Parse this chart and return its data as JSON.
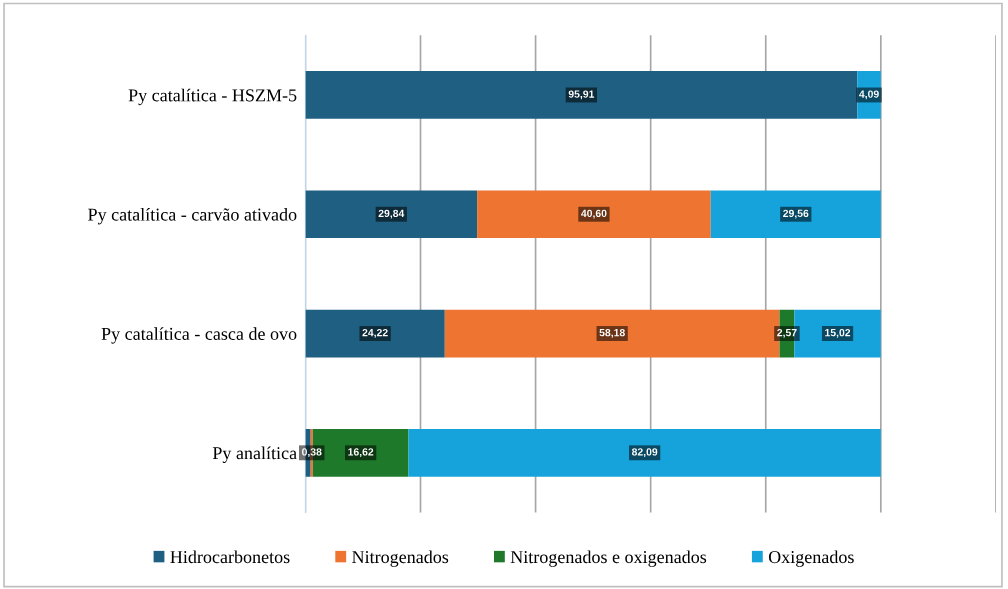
{
  "chart_data": {
    "type": "bar",
    "orientation": "horizontal",
    "stacked": true,
    "categories": [
      "Py catalítica - HSZM-5",
      "Py catalítica - carvão ativado",
      "Py catalítica - casca de ovo",
      "Py analítica"
    ],
    "series": [
      {
        "name": "Hidrocarbonetos",
        "color": "#1f5f82",
        "values": [
          95.91,
          29.84,
          24.22,
          0.91
        ],
        "value_labels": [
          "95,91",
          "29,84",
          "24,22",
          null
        ]
      },
      {
        "name": "Nitrogenados",
        "color": "#ee7431",
        "values": [
          0,
          40.6,
          58.18,
          0.38
        ],
        "value_labels": [
          null,
          "40,60",
          "58,18",
          "0,38"
        ]
      },
      {
        "name": "Nitrogenados e oxigenados",
        "color": "#1e7a2a",
        "values": [
          0,
          0,
          2.57,
          16.62
        ],
        "value_labels": [
          null,
          null,
          "2,57",
          "16,62"
        ]
      },
      {
        "name": "Oxigenados",
        "color": "#16a3dc",
        "values": [
          4.09,
          29.56,
          15.02,
          82.09
        ],
        "value_labels": [
          "4,09",
          "29,56",
          "15,02",
          "82,09"
        ]
      }
    ],
    "xlim": [
      0,
      120
    ],
    "xticks": [
      {
        "value": 0,
        "label": null
      },
      {
        "value": 20,
        "label": null
      },
      {
        "value": 40,
        "label": null
      },
      {
        "value": 60,
        "label": null
      },
      {
        "value": 80,
        "label": null
      },
      {
        "value": 100,
        "label": null
      },
      {
        "value": 120,
        "label": null
      }
    ],
    "tick_labels": "y",
    "grid": "x",
    "legend": "bottom"
  }
}
